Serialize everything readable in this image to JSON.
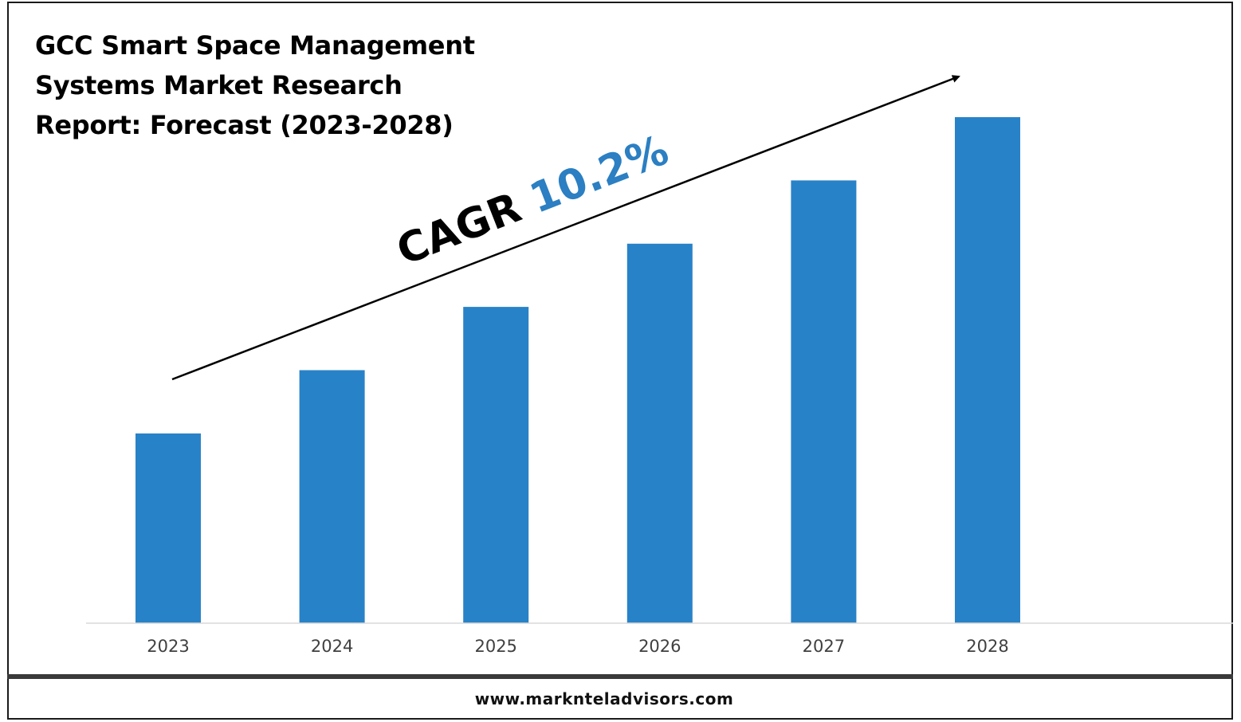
{
  "title_lines": [
    "GCC Smart Space Management",
    "Systems Market Research",
    "Report: Forecast (2023-2028)"
  ],
  "cagr": {
    "label": "CAGR",
    "value": "10.2%"
  },
  "footer": {
    "url": "www.marknteladvisors.com"
  },
  "colors": {
    "bar": "#2882c8",
    "cagr_value": "#2b7fc2",
    "text": "#000000",
    "axis": "#d9d9d9",
    "tick_label": "#404040"
  },
  "chart_data": {
    "type": "bar",
    "categories": [
      "2023",
      "2024",
      "2025",
      "2026",
      "2027",
      "2028"
    ],
    "values": [
      3.0,
      4.0,
      5.0,
      6.0,
      7.0,
      8.0
    ],
    "title": "GCC Smart Space Management Systems Market Research Report: Forecast (2023-2028)",
    "xlabel": "",
    "ylabel": "",
    "ylim": [
      0,
      8.0
    ],
    "grid": false,
    "legend": "none"
  }
}
